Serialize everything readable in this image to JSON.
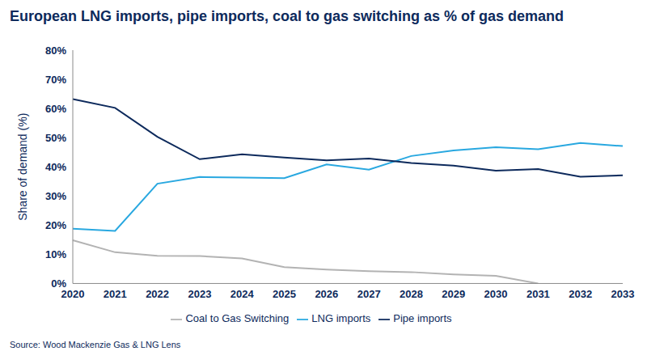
{
  "chart_data": {
    "type": "line",
    "title": "European LNG imports, pipe imports, coal to gas switching as % of gas demand",
    "y_label": "Share of demand (%)",
    "source": "Source: Wood Mackenzie Gas & LNG Lens",
    "categories": [
      "2020",
      "2021",
      "2022",
      "2023",
      "2024",
      "2025",
      "2026",
      "2027",
      "2028",
      "2029",
      "2030",
      "2031",
      "2032",
      "2033"
    ],
    "series": [
      {
        "name": "LNG imports",
        "color": "#29a8e0",
        "values": [
          18.8,
          18,
          34.2,
          36.5,
          36.3,
          36.1,
          40.8,
          39,
          43.7,
          45.6,
          46.7,
          46,
          48.2,
          47.1
        ]
      },
      {
        "name": "Pipe imports",
        "color": "#0d2a5c",
        "values": [
          63.2,
          60.2,
          50.3,
          42.6,
          44.3,
          43.2,
          42.2,
          42.8,
          41.3,
          40.4,
          38.7,
          39.2,
          36.6,
          37.1
        ]
      },
      {
        "name": "Coal to Gas Switching",
        "color": "#b3b3b3",
        "values": [
          14.8,
          10.7,
          9.5,
          9.4,
          8.6,
          5.6,
          4.8,
          4.2,
          3.9,
          3.1,
          2.6,
          0,
          null,
          null
        ]
      }
    ],
    "ylim": [
      0,
      80
    ],
    "yticks": [
      {
        "value": 0,
        "label": "0%"
      },
      {
        "value": 10,
        "label": "10%"
      },
      {
        "value": 20,
        "label": "20%"
      },
      {
        "value": 30,
        "label": "30%"
      },
      {
        "value": 40,
        "label": "40%"
      },
      {
        "value": 50,
        "label": "50%"
      },
      {
        "value": 60,
        "label": "60%"
      },
      {
        "value": 70,
        "label": "70%"
      },
      {
        "value": 80,
        "label": "80%"
      }
    ],
    "grid": false,
    "legend": "bottom"
  }
}
